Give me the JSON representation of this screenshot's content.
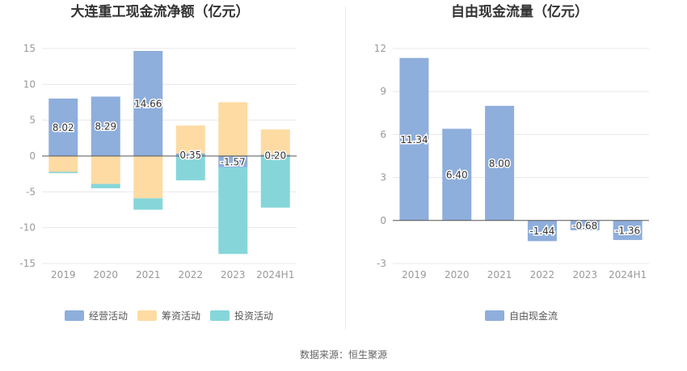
{
  "source_label": "数据来源：恒生聚源",
  "colors": {
    "operating": "#8eaedc",
    "financing": "#fddba3",
    "investing": "#86d6d9",
    "fcf": "#8eaedc",
    "axis_text": "#999999",
    "title": "#333333",
    "grid": "#e8e8e8",
    "zero_line": "#555555"
  },
  "chart_data": [
    {
      "type": "bar",
      "stacked": true,
      "title": "大连重工现金流净额（亿元）",
      "categories": [
        "2019",
        "2020",
        "2021",
        "2022",
        "2023",
        "2024H1"
      ],
      "ylim": [
        -15,
        15
      ],
      "yticks": [
        15,
        10,
        5,
        0,
        -5,
        -10,
        -15
      ],
      "grid": true,
      "legend_position": "bottom",
      "series": [
        {
          "name": "经营活动",
          "color": "#8eaedc",
          "values": [
            8.02,
            8.29,
            14.66,
            0.35,
            -1.57,
            0.2
          ],
          "labels": [
            "8.02",
            "8.29",
            "14.66",
            "0.35",
            "-1.57",
            "0.20"
          ]
        },
        {
          "name": "筹资活动",
          "color": "#fddba3",
          "values": [
            -2.2,
            -3.9,
            -5.9,
            3.9,
            7.5,
            3.5
          ]
        },
        {
          "name": "投资活动",
          "color": "#86d6d9",
          "values": [
            -0.2,
            -0.6,
            -1.6,
            -3.4,
            -12.1,
            -7.2
          ]
        }
      ]
    },
    {
      "type": "bar",
      "title": "自由现金流量（亿元）",
      "categories": [
        "2019",
        "2020",
        "2021",
        "2022",
        "2023",
        "2024H1"
      ],
      "ylim": [
        -3,
        12
      ],
      "yticks": [
        12,
        9,
        6,
        3,
        0,
        -3
      ],
      "grid": true,
      "legend_position": "bottom",
      "series": [
        {
          "name": "自由现金流",
          "color": "#8eaedc",
          "values": [
            11.34,
            6.4,
            8.0,
            -1.44,
            -0.68,
            -1.36
          ],
          "labels": [
            "11.34",
            "6.40",
            "8.00",
            "-1.44",
            "-0.68",
            "-1.36"
          ]
        }
      ]
    }
  ]
}
